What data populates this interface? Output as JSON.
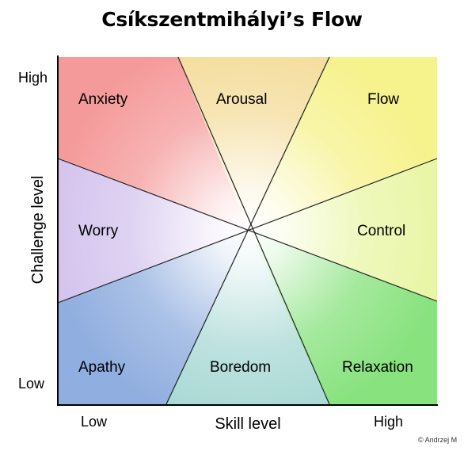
{
  "title": "Csíkszentmihályi’s Flow",
  "regions": {
    "anxiety": "Anxiety",
    "arousal": "Arousal",
    "flow": "Flow",
    "worry": "Worry",
    "control": "Control",
    "apathy": "Apathy",
    "boredom": "Boredom",
    "relaxation": "Relaxation"
  },
  "axes": {
    "y_title": "Challenge level",
    "y_high": "High",
    "y_low": "Low",
    "x_title": "Skill level",
    "x_low": "Low",
    "x_high": "High"
  },
  "colors": {
    "anxiety": "#f59a9a",
    "arousal": "#f4dc9a",
    "flow": "#f6f28c",
    "worry": "#d4c4ee",
    "control": "#e8f6a4",
    "apathy": "#90aedf",
    "boredom": "#a8d8d4",
    "relaxation": "#88e27e"
  },
  "credit": "© Andrzej M"
}
